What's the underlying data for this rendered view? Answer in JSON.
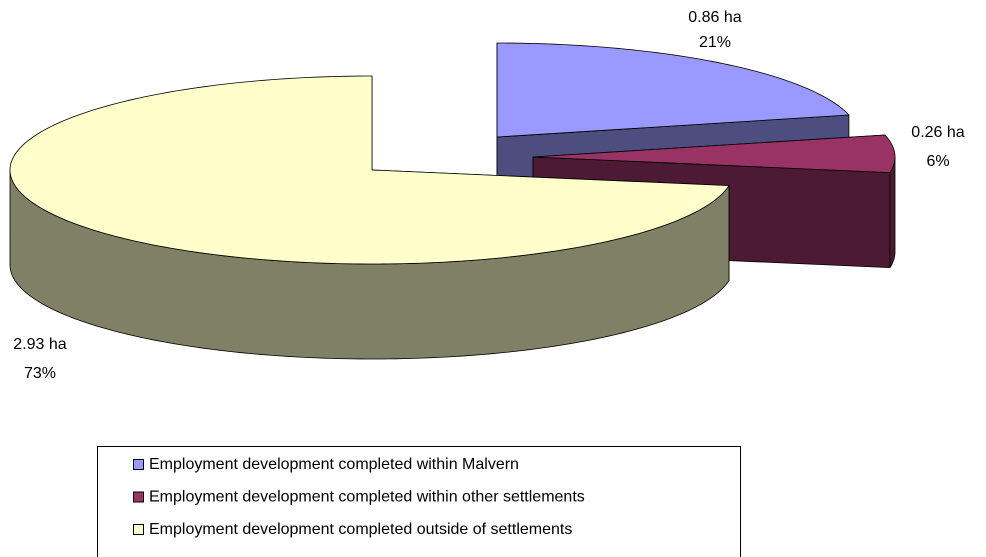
{
  "chart_data": {
    "type": "pie3d",
    "categories": [
      "Employment development completed within Malvern",
      "Employment development completed within other settlements",
      "Employment development completed outside of settlements"
    ],
    "values": [
      0.86,
      0.26,
      2.93
    ],
    "value_labels": [
      "0.86 ha",
      "0.26 ha",
      "2.93 ha"
    ],
    "percentages": [
      21,
      6,
      73
    ],
    "percentage_labels": [
      "21%",
      "6%",
      "73%"
    ],
    "colors": [
      "#9999ff",
      "#993366",
      "#ffffcc"
    ],
    "side_colors": [
      "#4d4d80",
      "#4d1a33",
      "#808066"
    ],
    "legend": "bottom"
  }
}
